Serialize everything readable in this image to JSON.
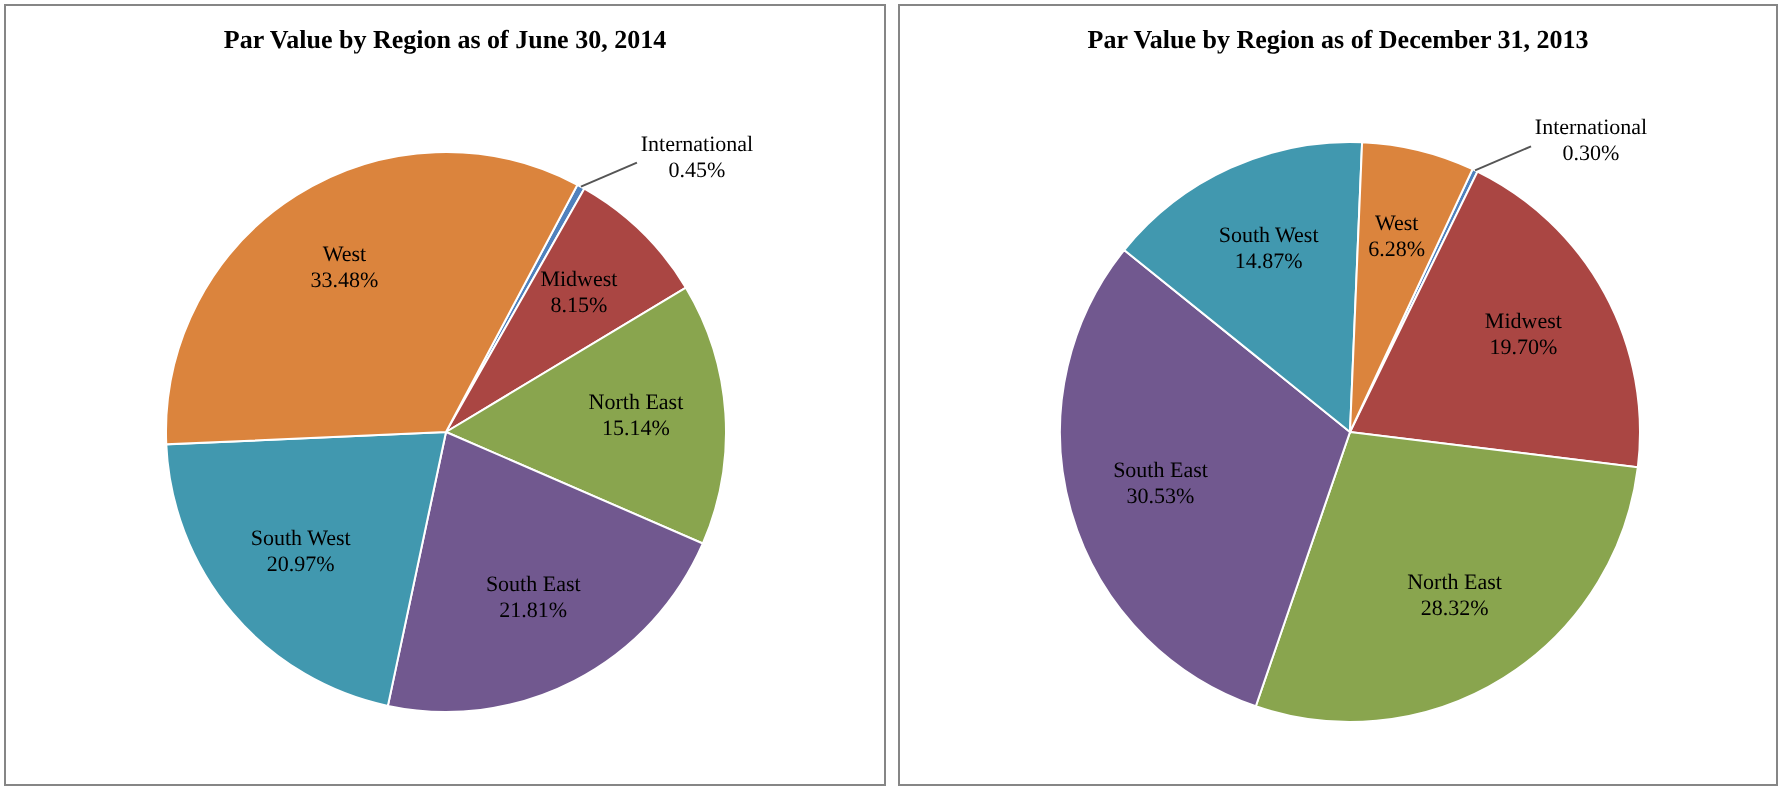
{
  "chart_data": [
    {
      "type": "pie",
      "title": "Par Value by Region as of June 30, 2014",
      "categories": [
        "International",
        "Midwest",
        "North East",
        "South East",
        "South West",
        "West"
      ],
      "values": [
        0.45,
        8.15,
        15.14,
        21.81,
        20.97,
        33.48
      ],
      "value_labels": [
        "0.45%",
        "8.15%",
        "15.14%",
        "21.81%",
        "20.97%",
        "33.48%"
      ],
      "colors": [
        "#4f81bd",
        "#aa4643",
        "#89a54e",
        "#71588f",
        "#4198af",
        "#db843d"
      ],
      "legend": false
    },
    {
      "type": "pie",
      "title": "Par Value by Region as of December 31, 2013",
      "categories": [
        "International",
        "Midwest",
        "North East",
        "South East",
        "South West",
        "West"
      ],
      "values": [
        0.3,
        19.7,
        28.32,
        30.53,
        14.87,
        6.28
      ],
      "value_labels": [
        "0.30%",
        "19.70%",
        "28.32%",
        "30.53%",
        "14.87%",
        "6.28%"
      ],
      "colors": [
        "#4f81bd",
        "#aa4643",
        "#89a54e",
        "#71588f",
        "#4198af",
        "#db843d"
      ],
      "legend": false
    }
  ]
}
